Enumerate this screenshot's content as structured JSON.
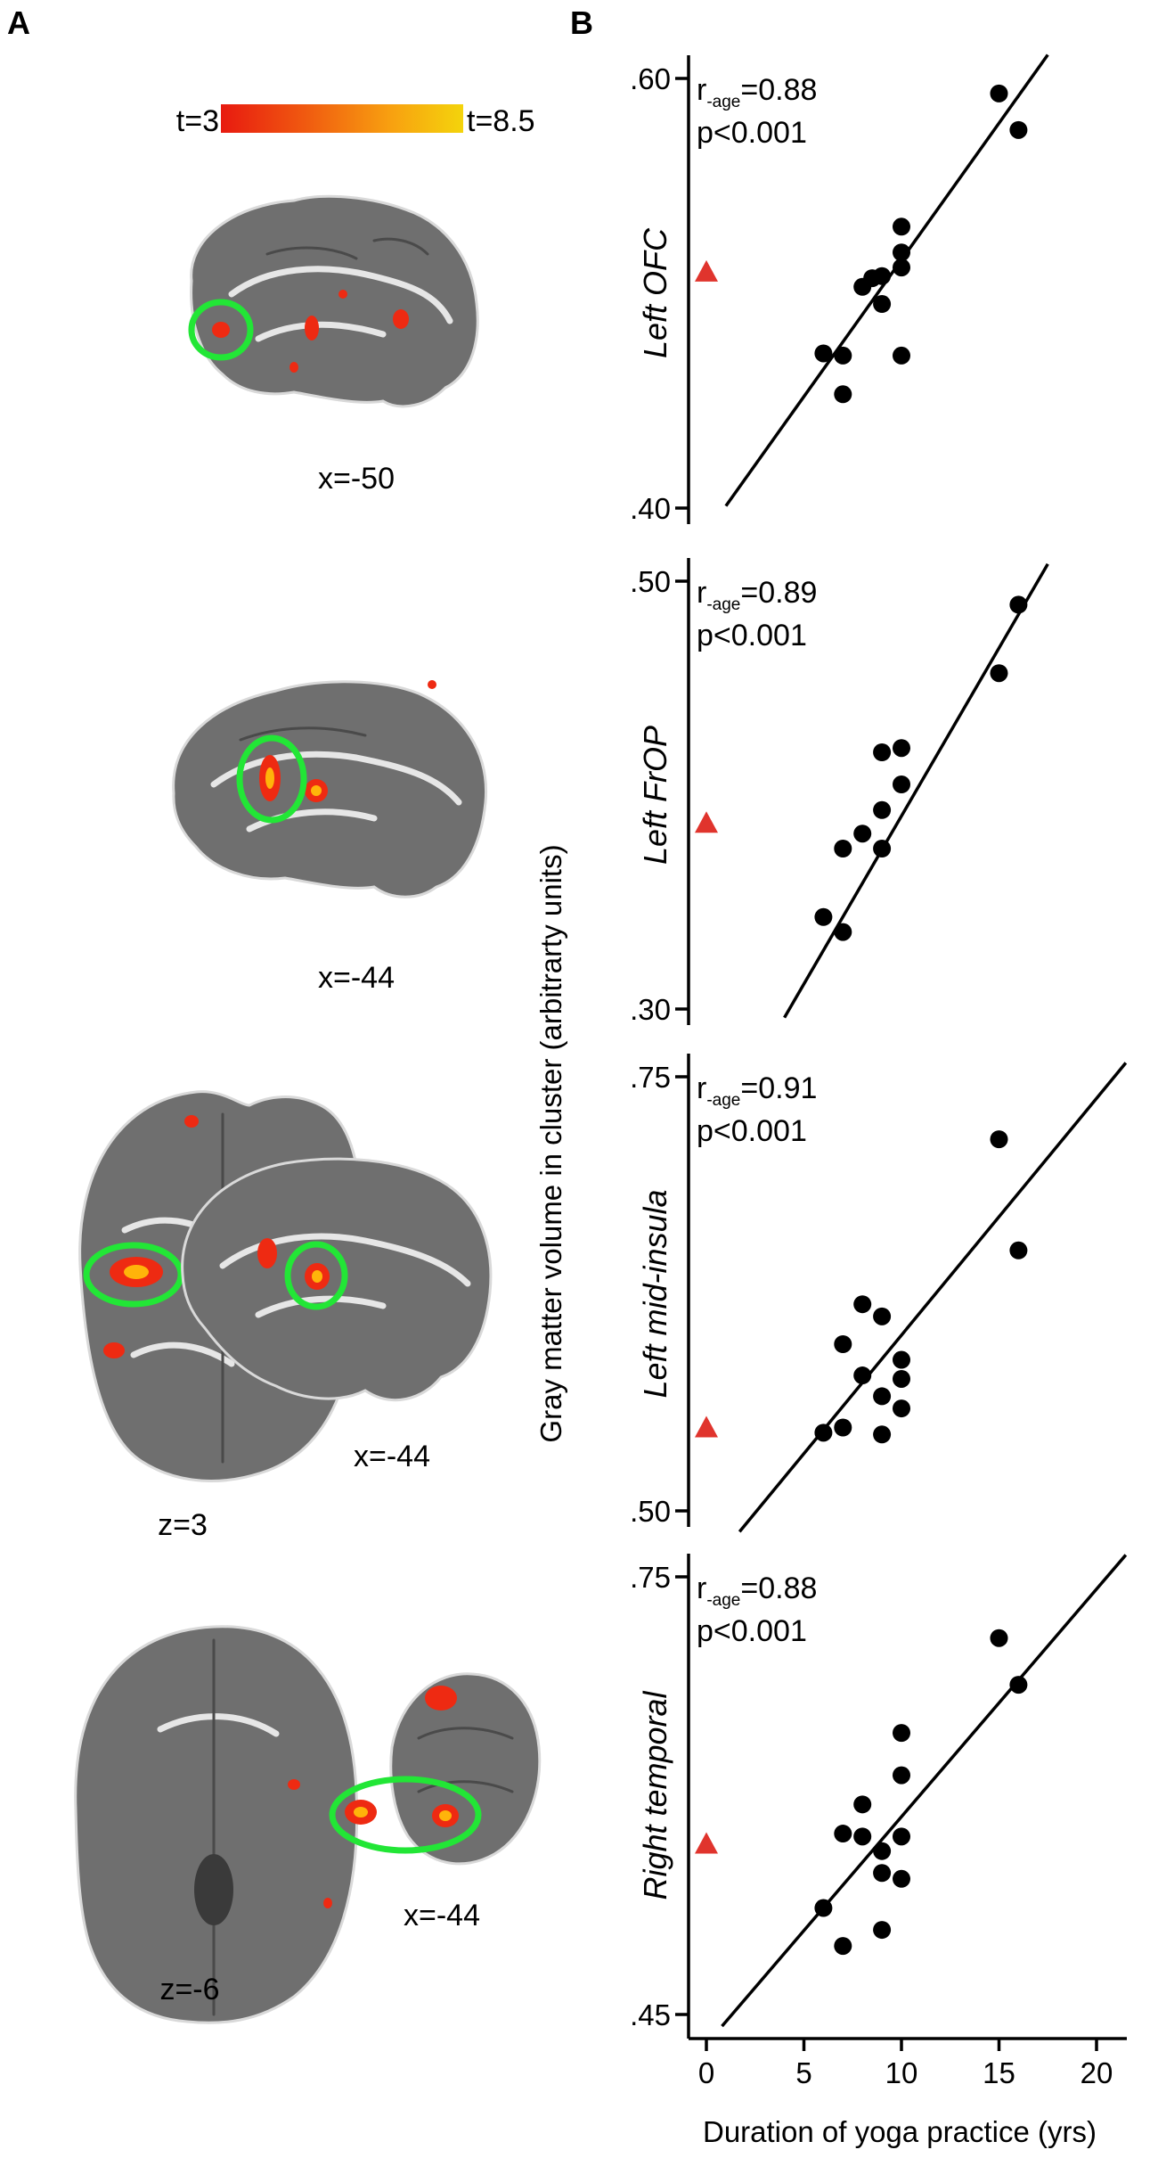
{
  "panels": {
    "a_label": "A",
    "b_label": "B"
  },
  "colorbar": {
    "min_label": "t=3",
    "max_label": "t=8.5",
    "colors": [
      "#e81a10",
      "#f05a10",
      "#f8a010",
      "#f4d40c"
    ]
  },
  "brain_slices": [
    {
      "label": "x=-50"
    },
    {
      "label": "x=-44"
    },
    {
      "label": "z=3",
      "label2": "x=-44"
    },
    {
      "label": "z=-6",
      "label2": "x=-44"
    }
  ],
  "shared_ylabel": "Gray matter volume in cluster (arbitrarty units)",
  "colors": {
    "points": "#000000",
    "control": "#e0342d",
    "roi_circle": "#22e636"
  },
  "chart_data": [
    {
      "type": "scatter",
      "region": "Left OFC",
      "stat_r_prefix": "r",
      "stat_r_sub": "-age",
      "stat_r_value": "=0.88",
      "stat_p": "p<0.001",
      "ylim": [
        0.4,
        0.6
      ],
      "ytick_values": [
        0.4,
        0.6
      ],
      "ytick_labels": [
        ".40",
        ".60"
      ],
      "xlim": [
        -0.5,
        21
      ],
      "points": [
        [
          15,
          0.593
        ],
        [
          16,
          0.576
        ],
        [
          10,
          0.531
        ],
        [
          10,
          0.519
        ],
        [
          10,
          0.512
        ],
        [
          9,
          0.508
        ],
        [
          8,
          0.503
        ],
        [
          8.5,
          0.507
        ],
        [
          9,
          0.495
        ],
        [
          6,
          0.472
        ],
        [
          7,
          0.471
        ],
        [
          10,
          0.471
        ],
        [
          7,
          0.453
        ]
      ],
      "control": [
        0,
        0.51
      ],
      "fit": [
        [
          1,
          0.401
        ],
        [
          17.5,
          0.611
        ]
      ]
    },
    {
      "type": "scatter",
      "region": "Left FrOP",
      "stat_r_prefix": "r",
      "stat_r_sub": "-age",
      "stat_r_value": "=0.89",
      "stat_p": "p<0.001",
      "ylim": [
        0.3,
        0.5
      ],
      "ytick_values": [
        0.3,
        0.5
      ],
      "ytick_labels": [
        ".30",
        ".50"
      ],
      "xlim": [
        -0.5,
        21
      ],
      "points": [
        [
          16,
          0.489
        ],
        [
          15,
          0.457
        ],
        [
          10,
          0.422
        ],
        [
          9,
          0.42
        ],
        [
          10,
          0.405
        ],
        [
          9,
          0.393
        ],
        [
          8,
          0.382
        ],
        [
          7,
          0.375
        ],
        [
          9,
          0.375
        ],
        [
          6,
          0.343
        ],
        [
          7,
          0.336
        ]
      ],
      "control": [
        0,
        0.387
      ],
      "fit": [
        [
          4,
          0.296
        ],
        [
          17.5,
          0.508
        ]
      ]
    },
    {
      "type": "scatter",
      "region": "Left mid-insula",
      "stat_r_prefix": "r",
      "stat_r_sub": "-age",
      "stat_r_value": "=0.91",
      "stat_p": "p<0.001",
      "ylim": [
        0.5,
        0.75
      ],
      "ytick_values": [
        0.5,
        0.75
      ],
      "ytick_labels": [
        ".50",
        ".75"
      ],
      "xlim": [
        -0.5,
        21
      ],
      "points": [
        [
          15,
          0.714
        ],
        [
          16,
          0.65
        ],
        [
          8,
          0.619
        ],
        [
          9,
          0.612
        ],
        [
          7,
          0.596
        ],
        [
          10,
          0.587
        ],
        [
          8,
          0.578
        ],
        [
          10,
          0.576
        ],
        [
          9,
          0.566
        ],
        [
          10,
          0.559
        ],
        [
          6,
          0.545
        ],
        [
          7,
          0.548
        ],
        [
          9,
          0.544
        ]
      ],
      "control": [
        0,
        0.548
      ],
      "fit": [
        [
          1.7,
          0.488
        ],
        [
          21.5,
          0.758
        ]
      ]
    },
    {
      "type": "scatter",
      "region": "Right temporal",
      "stat_r_prefix": "r",
      "stat_r_sub": "-age",
      "stat_r_value": "=0.88",
      "stat_p": "p<0.001",
      "ylim": [
        0.45,
        0.75
      ],
      "ytick_values": [
        0.45,
        0.75
      ],
      "ytick_labels": [
        ".45",
        ".75"
      ],
      "xlim": [
        -0.5,
        21
      ],
      "points": [
        [
          15,
          0.708
        ],
        [
          16,
          0.676
        ],
        [
          10,
          0.643
        ],
        [
          10,
          0.614
        ],
        [
          8,
          0.594
        ],
        [
          7,
          0.574
        ],
        [
          8,
          0.572
        ],
        [
          10,
          0.572
        ],
        [
          9,
          0.562
        ],
        [
          9,
          0.547
        ],
        [
          10,
          0.543
        ],
        [
          6,
          0.523
        ],
        [
          9,
          0.508
        ],
        [
          7,
          0.497
        ]
      ],
      "control": [
        0,
        0.567
      ],
      "fit": [
        [
          0.8,
          0.442
        ],
        [
          21.5,
          0.765
        ]
      ]
    }
  ],
  "x_axis": {
    "label": "Duration of yoga practice (yrs)",
    "ticks": [
      0,
      5,
      10,
      15,
      20
    ],
    "tick_labels": [
      "0",
      "5",
      "10",
      "15",
      "20"
    ]
  }
}
